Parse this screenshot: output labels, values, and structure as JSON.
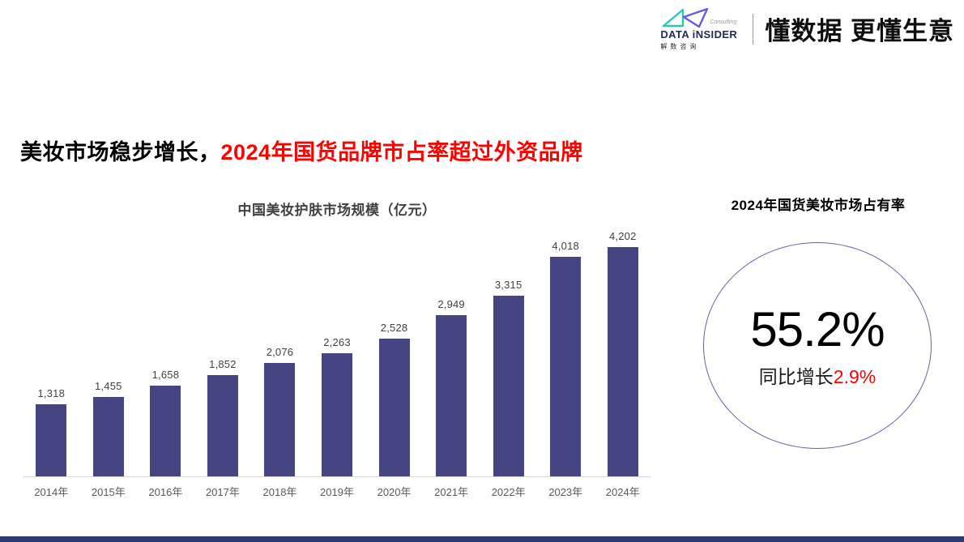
{
  "header": {
    "logo": {
      "consulting": "Consulting",
      "name": "DATA iNSIDER",
      "subtitle": "解数咨询",
      "triangle_left_color": "#2ec4b6",
      "triangle_right_color": "#6a5ae0"
    },
    "slogan": "懂数据 更懂生意"
  },
  "title": {
    "black_part": "美妆市场稳步增长，",
    "red_part": "2024年国货品牌市占率超过外资品牌",
    "red_color": "#ff0000"
  },
  "chart_data": {
    "type": "bar",
    "title": "中国美妆护肤市场规模（亿元）",
    "categories": [
      "2014年",
      "2015年",
      "2016年",
      "2017年",
      "2018年",
      "2019年",
      "2020年",
      "2021年",
      "2022年",
      "2023年",
      "2024年"
    ],
    "values": [
      1318,
      1455,
      1658,
      1852,
      2076,
      2263,
      2528,
      2949,
      3315,
      4018,
      4202
    ],
    "value_labels": [
      "1,318",
      "1,455",
      "1,658",
      "1,852",
      "2,076",
      "2,263",
      "2,528",
      "2,949",
      "3,315",
      "4,018",
      "4,202"
    ],
    "bar_color": "#464583",
    "axis_line_color": "#d9d9d9",
    "ylim": [
      0,
      4202
    ],
    "grid": false,
    "legend": "none",
    "xlabel": "",
    "ylabel": ""
  },
  "kpi": {
    "title": "2024年国货美妆市场占有率",
    "value": "55.2%",
    "growth_label": "同比增长",
    "growth_value": "2.9%",
    "growth_value_color": "#ff0000",
    "circle_border_color": "#6363a0"
  },
  "footer": {
    "bar_color": "#2e3a74"
  }
}
